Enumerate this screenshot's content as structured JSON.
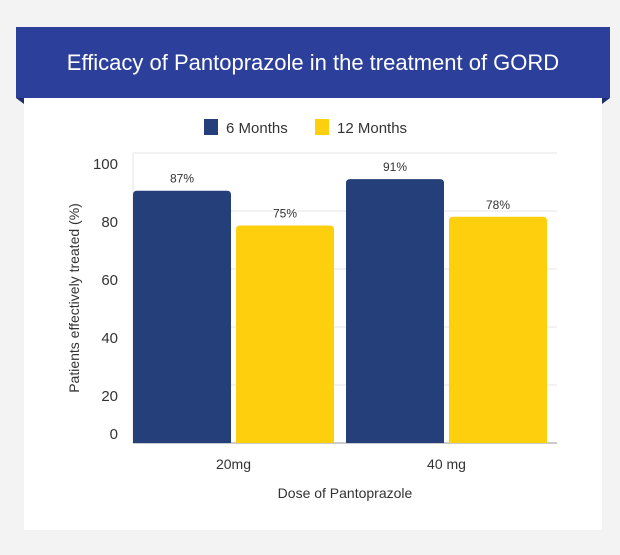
{
  "chart_data": {
    "type": "bar",
    "title": "Efficacy of Pantoprazole in the treatment of GORD",
    "xlabel": "Dose of Pantoprazole",
    "ylabel": "Patients effectively treated (%)",
    "categories": [
      "20mg",
      "40 mg"
    ],
    "series": [
      {
        "name": "6 Months",
        "values": [
          87,
          91
        ],
        "labels": [
          "87%",
          "91%"
        ],
        "color": "#243f7a"
      },
      {
        "name": "12 Months",
        "values": [
          75,
          78
        ],
        "labels": [
          "75%",
          "78%"
        ],
        "color": "#fdcf0c"
      }
    ],
    "ylim": [
      0,
      100
    ],
    "yticks": [
      "0",
      "20",
      "40",
      "60",
      "80",
      "100"
    ],
    "grid": true,
    "legend": "top-center"
  }
}
